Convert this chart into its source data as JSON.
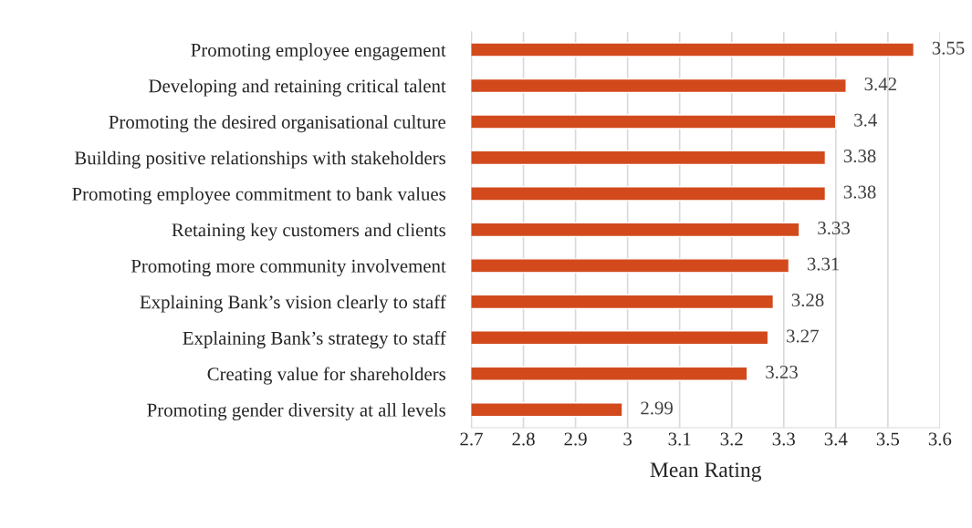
{
  "chart_data": {
    "type": "bar",
    "orientation": "horizontal",
    "xlabel": "Mean Rating",
    "categories": [
      "Promoting employee engagement",
      "Developing and retaining critical talent",
      "Promoting the desired organisational culture",
      "Building positive relationships with stakeholders",
      "Promoting employee commitment to bank values",
      "Retaining key customers and clients",
      "Promoting more community involvement",
      "Explaining Bank’s vision clearly to staff",
      "Explaining Bank’s strategy to staff",
      "Creating value for shareholders",
      "Promoting gender diversity at all levels"
    ],
    "values": [
      3.55,
      3.42,
      3.4,
      3.38,
      3.38,
      3.33,
      3.31,
      3.28,
      3.27,
      3.23,
      2.99
    ],
    "color": "#d24a1c",
    "xlim": [
      2.7,
      3.6
    ],
    "xticks": [
      2.7,
      2.8,
      2.9,
      3,
      3.1,
      3.2,
      3.3,
      3.4,
      3.5,
      3.6
    ],
    "grid": "x",
    "data_labels": true
  }
}
